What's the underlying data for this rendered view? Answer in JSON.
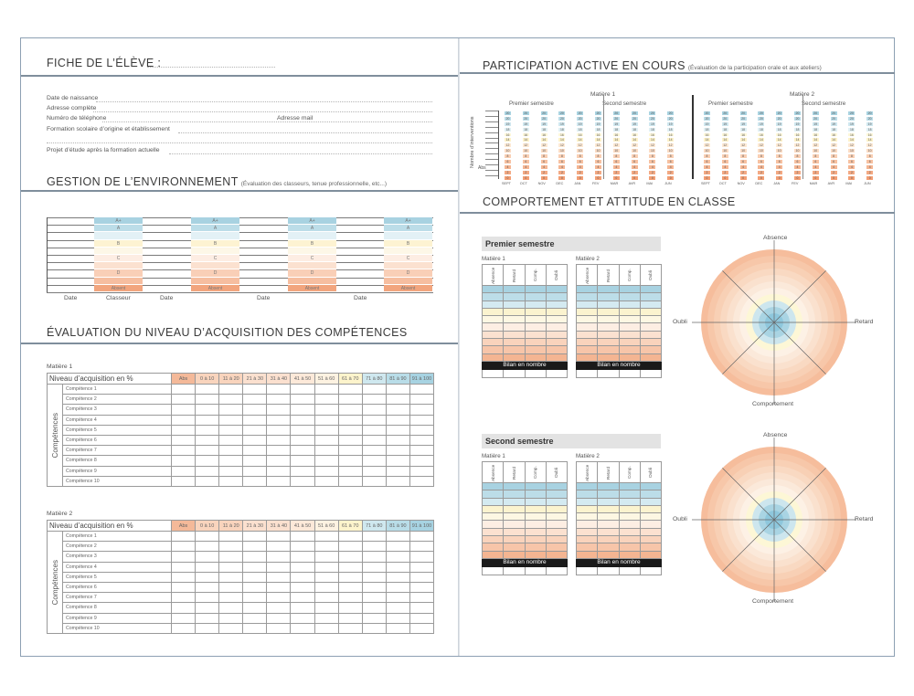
{
  "left": {
    "student_sheet": {
      "title": "FICHE DE L’ÉLÈVE :",
      "fields": [
        "Date de naissance",
        "Adresse complète",
        "Numéro de téléphone",
        "Formation scolaire d’origine et établissement",
        "Projet d’étude après la formation actuelle"
      ],
      "mail_label": "Adresse mail"
    },
    "environment": {
      "title": "GESTION DE L’ENVIRONNEMENT",
      "subtitle": "(Évaluation des classeurs, tenue professionnelle, etc...)",
      "grades": [
        "A+",
        "A",
        "",
        "B",
        "",
        "C",
        "",
        "D",
        "",
        "Absent"
      ],
      "footer": [
        "Date",
        "Classeur",
        "Date",
        "Date",
        "Date"
      ]
    },
    "competences": {
      "title": "ÉVALUATION DU NIVEAU D’ACQUISITION DES COMPÉTENCES",
      "side_label": "Compétences",
      "level_label": "Niveau d’acquisition en %",
      "columns": [
        "Abs",
        "0 à 10",
        "11 à 20",
        "21 à 30",
        "31 à 40",
        "41 à 50",
        "51 à 60",
        "61 à 70",
        "71 à 80",
        "81 à 90",
        "91 à 100"
      ],
      "column_colors": [
        "#f4b999",
        "#f9d4bd",
        "#f9d4bd",
        "#fbe0cf",
        "#fbe0cf",
        "#fde9d9",
        "#fdf2e1",
        "#fdf4cc",
        "#cfe8ef",
        "#b9dde8",
        "#a7d3e2"
      ],
      "subjects": [
        {
          "name": "Matière 1",
          "rows": [
            "Compétence 1",
            "Compétence 2",
            "Compétence 3",
            "Compétence 4",
            "Compétence 5",
            "Compétence 6",
            "Compétence 7",
            "Compétence 8",
            "Compétence 9",
            "Compétence 10"
          ]
        },
        {
          "name": "Matière 2",
          "rows": [
            "Compétence 1",
            "Compétence 2",
            "Compétence 3",
            "Compétence 4",
            "Compétence 5",
            "Compétence 6",
            "Compétence 7",
            "Compétence 8",
            "Compétence 9",
            "Compétence 10"
          ]
        }
      ]
    }
  },
  "right": {
    "participation": {
      "title": "PARTICIPATION ACTIVE EN COURS",
      "subtitle": "(Évaluation de la participation orale et aux ateliers)",
      "y_label": "Nombre d’interventions",
      "abs_label": "Abs",
      "levels": [
        "20",
        "20",
        "19",
        "18",
        "16",
        "14",
        "12",
        "10",
        "8",
        "6",
        "4",
        "2",
        "0"
      ],
      "level_colors": [
        "#a9d3e1",
        "#bcdde8",
        "#cfe7ef",
        "#e1f0f4",
        "#fdf7d8",
        "#fdf2c9",
        "#fde9d3",
        "#fbdcc4",
        "#f9cfb3",
        "#f7c1a1",
        "#f5b592",
        "#f3a983",
        "#f39e74"
      ],
      "blocks": [
        {
          "subject": "Matière 1",
          "semesters": [
            "Premier semestre",
            "Second semestre"
          ],
          "months": [
            "SEPT",
            "OCT",
            "NOV",
            "DEC",
            "JAN",
            "FEV",
            "MAR",
            "AVR",
            "MAI",
            "JUN"
          ]
        },
        {
          "subject": "Matière 2",
          "semesters": [
            "Premier semestre",
            "Second semestre"
          ],
          "months": [
            "SEPT",
            "OCT",
            "NOV",
            "DEC",
            "JAN",
            "FEV",
            "MAR",
            "AVR",
            "MAI",
            "JUN"
          ]
        }
      ]
    },
    "behaviour": {
      "title": "COMPORTEMENT ET ATTITUDE EN CLASSE",
      "headers": [
        "Absence",
        "Retard",
        "Comp.",
        "Oubli"
      ],
      "bilan": "Bilan en nombre",
      "row_colors": [
        "#a8d2e1",
        "#bcdde8",
        "#d4eaf1",
        "#fbf3cf",
        "#fdf7e3",
        "#fdeee3",
        "#fbe1d0",
        "#f9d3bc",
        "#f7c5a9",
        "#f4b592"
      ],
      "semesters": [
        {
          "title": "Premier semestre",
          "subjects": [
            "Matière 1",
            "Matière 2"
          ]
        },
        {
          "title": "Second semestre",
          "subjects": [
            "Matière 1",
            "Matière 2"
          ]
        }
      ],
      "radar": {
        "top": "Absence",
        "left": "Oubli",
        "right": "Retard",
        "bottom": "Comportement"
      }
    }
  }
}
